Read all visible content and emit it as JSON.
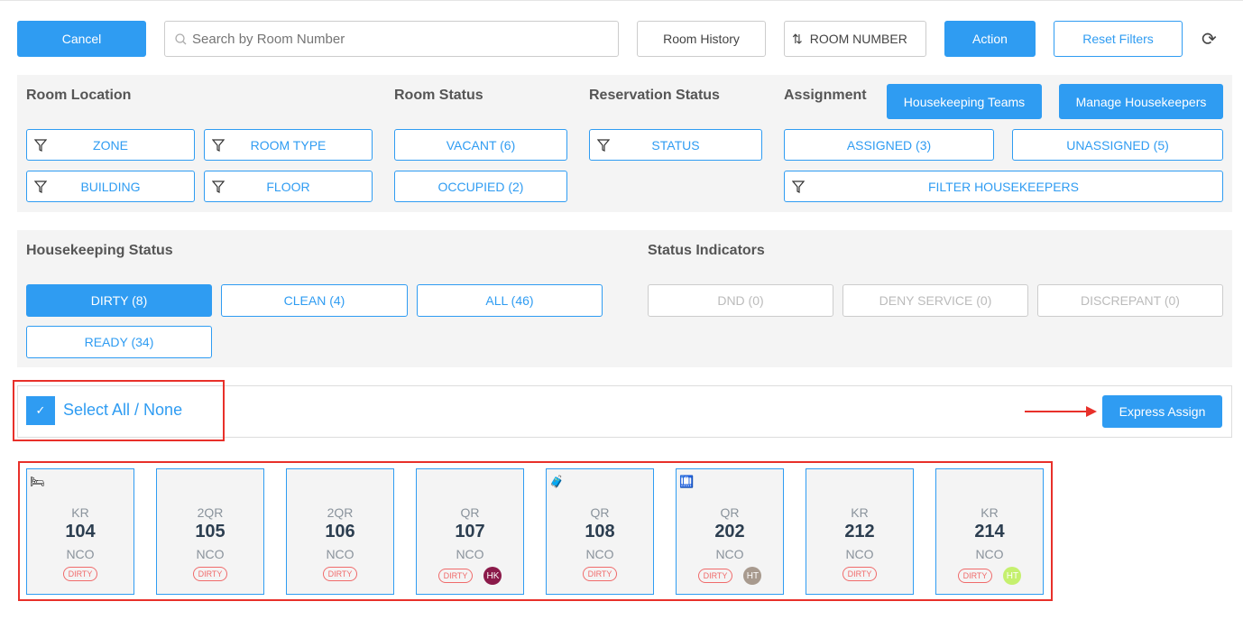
{
  "toolbar": {
    "cancel": "Cancel",
    "search_placeholder": "Search by Room Number",
    "room_history": "Room History",
    "sort": "ROOM NUMBER",
    "action": "Action",
    "reset_filters": "Reset Filters"
  },
  "filters": {
    "room_location": {
      "title": "Room Location",
      "zone": "ZONE",
      "room_type": "ROOM TYPE",
      "building": "BUILDING",
      "floor": "FLOOR"
    },
    "room_status": {
      "title": "Room Status",
      "vacant": "VACANT (6)",
      "occupied": "OCCUPIED (2)"
    },
    "reservation_status": {
      "title": "Reservation Status",
      "status": "STATUS"
    },
    "assignment": {
      "title": "Assignment",
      "teams": "Housekeeping Teams",
      "manage": "Manage Housekeepers",
      "assigned": "ASSIGNED (3)",
      "unassigned": "UNASSIGNED (5)",
      "filter_hk": "FILTER HOUSEKEEPERS"
    }
  },
  "housekeeping": {
    "title": "Housekeeping Status",
    "dirty": "DIRTY (8)",
    "clean": "CLEAN (4)",
    "all": "ALL (46)",
    "ready": "READY (34)"
  },
  "indicators": {
    "title": "Status Indicators",
    "dnd": "DND (0)",
    "deny": "DENY SERVICE (0)",
    "discrepant": "DISCREPANT (0)"
  },
  "select": {
    "label": "Select All / None",
    "checked": true,
    "express_assign": "Express Assign"
  },
  "colors": {
    "accent": "#2f9cf2",
    "annotation": "#e8302a"
  },
  "rooms": [
    {
      "type": "KR",
      "number": "104",
      "status": "NCO",
      "hk": "DIRTY",
      "icon": "bed-icon",
      "avatar": null
    },
    {
      "type": "2QR",
      "number": "105",
      "status": "NCO",
      "hk": "DIRTY",
      "icon": null,
      "avatar": null
    },
    {
      "type": "2QR",
      "number": "106",
      "status": "NCO",
      "hk": "DIRTY",
      "icon": null,
      "avatar": null
    },
    {
      "type": "QR",
      "number": "107",
      "status": "NCO",
      "hk": "DIRTY",
      "icon": null,
      "avatar": {
        "initials": "HK",
        "color": "#8b1a4a"
      }
    },
    {
      "type": "QR",
      "number": "108",
      "status": "NCO",
      "hk": "DIRTY",
      "icon": "guest-luggage-icon",
      "avatar": null
    },
    {
      "type": "QR",
      "number": "202",
      "status": "NCO",
      "hk": "DIRTY",
      "icon": "luggage-cart-icon",
      "avatar": {
        "initials": "HT",
        "color": "#a89a8e"
      }
    },
    {
      "type": "KR",
      "number": "212",
      "status": "NCO",
      "hk": "DIRTY",
      "icon": null,
      "avatar": null
    },
    {
      "type": "KR",
      "number": "214",
      "status": "NCO",
      "hk": "DIRTY",
      "icon": null,
      "avatar": {
        "initials": "HT",
        "color": "#c5f06e"
      }
    }
  ]
}
